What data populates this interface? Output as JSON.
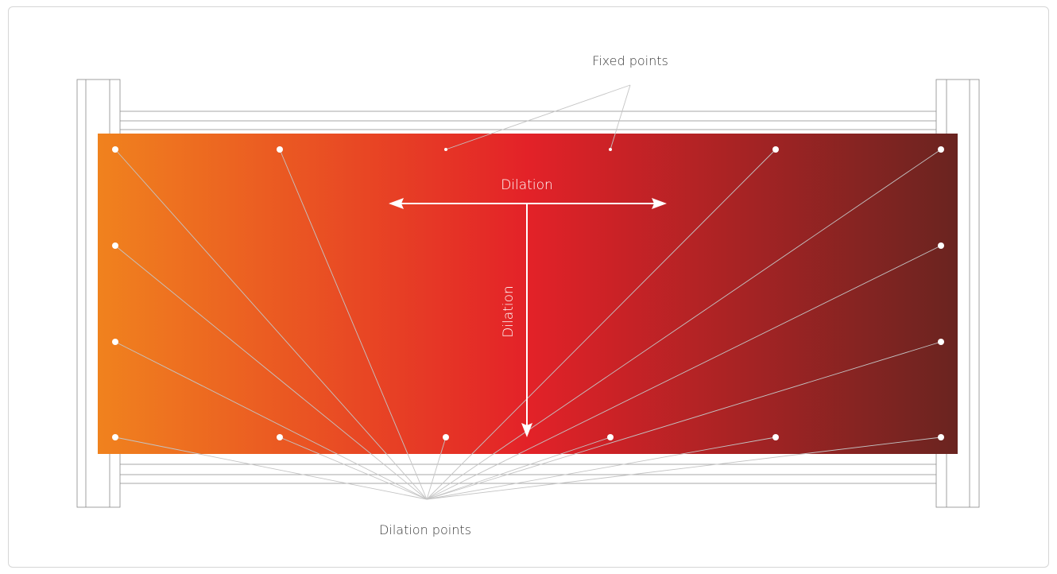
{
  "labels": {
    "fixed_points": "Fixed points",
    "dilation_horizontal": "Dilation",
    "dilation_vertical": "Dilation",
    "dilation_points": "Dilation points"
  },
  "colors": {
    "gradient": [
      "#f0821e",
      "#e32228",
      "#6a2420"
    ],
    "frame_stroke": "#8a8a8a",
    "leader_line": "#c0c0c0",
    "point_fill": "#ffffff"
  }
}
